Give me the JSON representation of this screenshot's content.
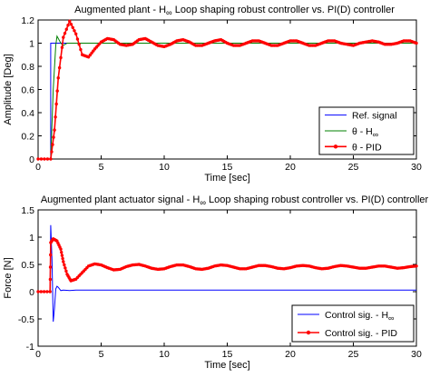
{
  "chart_data": [
    {
      "type": "line",
      "title": "Augmented plant - H∞ Loop shaping robust controller vs. PI(D) controller",
      "xlabel": "Time [sec]",
      "ylabel": "Amplitude [Deg]",
      "xlim": [
        0,
        30
      ],
      "ylim": [
        0,
        1.2
      ],
      "xticks": [
        0,
        5,
        10,
        15,
        20,
        25,
        30
      ],
      "yticks": [
        0,
        0.2,
        0.4,
        0.6,
        0.8,
        1,
        1.2
      ],
      "xtick_labels": [
        "0",
        "5",
        "10",
        "15",
        "20",
        "25",
        "30"
      ],
      "ytick_labels": [
        "0",
        "0.2",
        "0.4",
        "0.6",
        "0.8",
        "1",
        "1.2"
      ],
      "grid": false,
      "legend_position": "lower-right",
      "series": [
        {
          "name": "Ref. signal",
          "color": "#0000ff",
          "marker": "none",
          "x": [
            0,
            1,
            1,
            30
          ],
          "y": [
            0,
            0,
            1,
            1
          ]
        },
        {
          "name": "θ - H∞",
          "color": "#008000",
          "marker": "none",
          "x": [
            0,
            1.0,
            1.2,
            1.4,
            1.5,
            1.6,
            1.8,
            2.0,
            2.3,
            3.0,
            30
          ],
          "y": [
            0,
            0,
            0.6,
            0.98,
            1.06,
            1.04,
            1.0,
            0.98,
            1.0,
            1.0,
            1.0
          ]
        },
        {
          "name": "θ - PID",
          "color": "#ff0000",
          "marker": "dot",
          "x": [
            0,
            1.0,
            1.3,
            1.6,
            2.0,
            2.5,
            3.0,
            3.5,
            4.0,
            4.5,
            5.0,
            5.5,
            6.0,
            6.5,
            7.0,
            7.5,
            8.0,
            8.5,
            9.0,
            9.5,
            10.0,
            10.5,
            11.0,
            11.5,
            12.0,
            12.5,
            13.0,
            13.5,
            14.0,
            14.5,
            15.0,
            15.5,
            16.0,
            16.5,
            17.0,
            17.5,
            18.0,
            18.5,
            19.0,
            19.5,
            20.0,
            20.5,
            21.0,
            21.5,
            22.0,
            22.5,
            23.0,
            23.5,
            24.0,
            24.5,
            25.0,
            25.5,
            26.0,
            26.5,
            27.0,
            27.5,
            28.0,
            28.5,
            29.0,
            29.5,
            30.0
          ],
          "y": [
            0,
            0,
            0.25,
            0.7,
            1.05,
            1.19,
            1.08,
            0.9,
            0.88,
            0.95,
            1.01,
            1.04,
            1.03,
            0.99,
            0.98,
            0.99,
            1.03,
            1.04,
            1.01,
            0.98,
            0.97,
            0.99,
            1.02,
            1.03,
            1.01,
            0.98,
            0.98,
            1.0,
            1.02,
            1.03,
            1.0,
            0.98,
            0.98,
            1.0,
            1.02,
            1.02,
            1.0,
            0.98,
            0.98,
            1.0,
            1.02,
            1.02,
            1.0,
            0.98,
            0.98,
            1.0,
            1.02,
            1.02,
            1.0,
            0.99,
            0.98,
            1.0,
            1.01,
            1.02,
            1.01,
            0.99,
            0.99,
            1.0,
            1.02,
            1.02,
            1.0
          ]
        }
      ]
    },
    {
      "type": "line",
      "title": "Augmented plant actuator signal - H∞ Loop shaping robust controller vs. PI(D) controller",
      "xlabel": "Time [sec]",
      "ylabel": "Force [N]",
      "xlim": [
        0,
        30
      ],
      "ylim": [
        -1,
        1.5
      ],
      "xticks": [
        0,
        5,
        10,
        15,
        20,
        25,
        30
      ],
      "yticks": [
        -1,
        -0.5,
        0,
        0.5,
        1,
        1.5
      ],
      "xtick_labels": [
        "0",
        "5",
        "10",
        "15",
        "20",
        "25",
        "30"
      ],
      "ytick_labels": [
        "-1",
        "-0.5",
        "0",
        "0.5",
        "1",
        "1.5"
      ],
      "grid": false,
      "legend_position": "lower-right",
      "series": [
        {
          "name": "Control sig. - H∞",
          "color": "#0000ff",
          "marker": "none",
          "x": [
            0,
            0.95,
            1.0,
            1.1,
            1.2,
            1.3,
            1.4,
            1.5,
            1.6,
            1.8,
            2.0,
            2.5,
            3.0,
            5.0,
            10.0,
            15.0,
            20.0,
            25.0,
            30.0
          ],
          "y": [
            0,
            0,
            1.22,
            0.6,
            -0.55,
            -0.3,
            0.05,
            0.1,
            0.08,
            0.02,
            0.03,
            0.02,
            0.03,
            0.03,
            0.03,
            0.03,
            0.03,
            0.03,
            0.03
          ]
        },
        {
          "name": "Control sig. - PID",
          "color": "#ff0000",
          "marker": "dot",
          "x": [
            0,
            0.95,
            1.0,
            1.2,
            1.5,
            1.8,
            2.0,
            2.3,
            2.6,
            3.0,
            3.5,
            4.0,
            4.5,
            5.0,
            5.5,
            6.0,
            6.5,
            7.0,
            7.5,
            8.0,
            8.5,
            9.0,
            9.5,
            10.0,
            10.5,
            11.0,
            11.5,
            12.0,
            12.5,
            13.0,
            13.5,
            14.0,
            14.5,
            15.0,
            15.5,
            16.0,
            16.5,
            17.0,
            17.5,
            18.0,
            18.5,
            19.0,
            19.5,
            20.0,
            20.5,
            21.0,
            21.5,
            22.0,
            22.5,
            23.0,
            23.5,
            24.0,
            24.5,
            25.0,
            25.5,
            26.0,
            26.5,
            27.0,
            27.5,
            28.0,
            28.5,
            29.0,
            29.5,
            30.0
          ],
          "y": [
            0,
            0,
            0.9,
            0.97,
            0.93,
            0.78,
            0.55,
            0.32,
            0.2,
            0.23,
            0.35,
            0.47,
            0.51,
            0.49,
            0.44,
            0.4,
            0.41,
            0.46,
            0.49,
            0.5,
            0.47,
            0.43,
            0.41,
            0.42,
            0.46,
            0.49,
            0.49,
            0.46,
            0.42,
            0.41,
            0.43,
            0.47,
            0.49,
            0.48,
            0.45,
            0.42,
            0.42,
            0.45,
            0.48,
            0.48,
            0.46,
            0.43,
            0.42,
            0.44,
            0.47,
            0.48,
            0.47,
            0.44,
            0.42,
            0.43,
            0.46,
            0.48,
            0.47,
            0.45,
            0.43,
            0.43,
            0.45,
            0.47,
            0.47,
            0.45,
            0.43,
            0.44,
            0.46,
            0.47
          ]
        }
      ]
    }
  ]
}
